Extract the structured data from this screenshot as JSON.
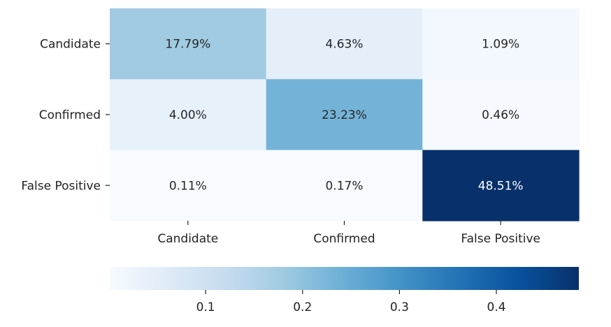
{
  "chart_data": {
    "type": "heatmap",
    "title": "",
    "xlabel": "",
    "ylabel": "",
    "x_categories": [
      "Candidate",
      "Confirmed",
      "False Positive"
    ],
    "y_categories": [
      "Candidate",
      "Confirmed",
      "False Positive"
    ],
    "values": [
      [
        0.1779,
        0.0463,
        0.0109
      ],
      [
        0.04,
        0.2323,
        0.0046
      ],
      [
        0.0011,
        0.0017,
        0.4851
      ]
    ],
    "annotations": [
      [
        "17.79%",
        "4.63%",
        "1.09%"
      ],
      [
        "4.00%",
        "23.23%",
        "0.46%"
      ],
      [
        "0.11%",
        "0.17%",
        "48.51%"
      ]
    ],
    "colormap": "Blues",
    "colormap_stops": [
      "#f7fbff",
      "#deebf7",
      "#c6dbef",
      "#9ecae1",
      "#6baed6",
      "#4292c6",
      "#2171b5",
      "#08519c",
      "#08306b"
    ],
    "colorbar": {
      "orientation": "horizontal",
      "range": [
        0.0011,
        0.4851
      ],
      "ticks": [
        0.1,
        0.2,
        0.3,
        0.4
      ],
      "tick_labels": [
        "0.1",
        "0.2",
        "0.3",
        "0.4"
      ]
    }
  }
}
